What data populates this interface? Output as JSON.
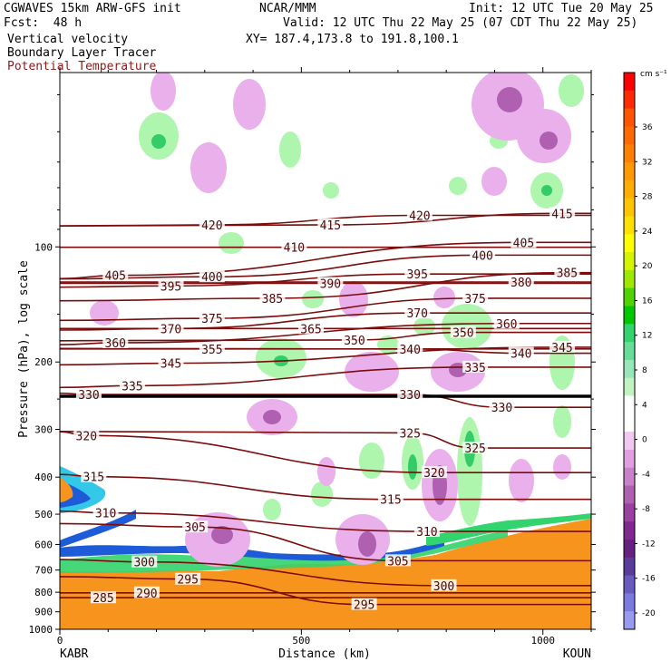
{
  "header": {
    "model": "CGWAVES 15km ARW-GFS init",
    "fcst_label": "Fcst:",
    "fcst_value": "48 h",
    "field1": "Vertical velocity",
    "field2": "Boundary Layer Tracer",
    "field3": "Potential Temperature",
    "org": "NCAR/MMM",
    "init": "Init: 12 UTC Tue 20 May 25",
    "valid": "Valid: 12 UTC Thu 22 May 25 (07 CDT Thu 22 May 25)",
    "xy": "XY= 187.4,173.8 to 191.8,100.1"
  },
  "colors": {
    "theta": "#7a0c0c",
    "tracer_orange": "#f7941d",
    "green": "#9ef59e",
    "pink": "#e9a6ea",
    "purple": "#9a3aa8"
  },
  "chart_data": {
    "type": "cross-section",
    "title": "Vertical velocity / Boundary Layer Tracer / Potential Temperature",
    "xlabel": "Distance (km)",
    "ylabel": "Pressure (hPa), log scale",
    "xlim": [
      0,
      1100
    ],
    "ylim_hpa": [
      1000,
      35
    ],
    "x_ticks": [
      0,
      500,
      1000
    ],
    "y_ticks": [
      100,
      200,
      300,
      400,
      500,
      600,
      700,
      800,
      900,
      1000
    ],
    "endpoints": {
      "left": "KABR",
      "right": "KOUN"
    },
    "colorbar": {
      "units": "cm s⁻¹",
      "labels": [
        "36",
        "32",
        "28",
        "24",
        "20",
        "16",
        "12",
        "8",
        "4",
        "0",
        "-4",
        "-8",
        "-12",
        "-16",
        "-20"
      ],
      "colors": [
        "#ff0000",
        "#ff2a00",
        "#ff5500",
        "#ff6a00",
        "#ff8000",
        "#ff9900",
        "#ffad00",
        "#ffc400",
        "#ffe000",
        "#ffff00",
        "#d4f400",
        "#9fe800",
        "#4fd400",
        "#00c800",
        "#33d36d",
        "#66dd99",
        "#99e6bb",
        "#c2f2c2",
        "#ffffff",
        "#ffffff",
        "#f0c8f0",
        "#e0a0e0",
        "#c882c8",
        "#b060b0",
        "#9a40a0",
        "#802890",
        "#662080",
        "#5a3a9a",
        "#6a5ac0",
        "#7a7ae0",
        "#9a9af0"
      ]
    },
    "theta_labels": [
      {
        "text": "420",
        "x": 315,
        "p": 90
      },
      {
        "text": "420",
        "x": 745,
        "p": 85
      },
      {
        "text": "415",
        "x": 560,
        "p": 90
      },
      {
        "text": "415",
        "x": 1040,
        "p": 84
      },
      {
        "text": "410",
        "x": 485,
        "p": 103
      },
      {
        "text": "405",
        "x": 115,
        "p": 122
      },
      {
        "text": "405",
        "x": 960,
        "p": 100
      },
      {
        "text": "400",
        "x": 315,
        "p": 123
      },
      {
        "text": "400",
        "x": 875,
        "p": 108
      },
      {
        "text": "395",
        "x": 230,
        "p": 130
      },
      {
        "text": "395",
        "x": 740,
        "p": 121
      },
      {
        "text": "390",
        "x": 560,
        "p": 128
      },
      {
        "text": "385",
        "x": 440,
        "p": 140
      },
      {
        "text": "385",
        "x": 1050,
        "p": 120
      },
      {
        "text": "380",
        "x": 955,
        "p": 127
      },
      {
        "text": "375",
        "x": 860,
        "p": 140
      },
      {
        "text": "375",
        "x": 315,
        "p": 158
      },
      {
        "text": "370",
        "x": 740,
        "p": 153
      },
      {
        "text": "370",
        "x": 230,
        "p": 168
      },
      {
        "text": "365",
        "x": 520,
        "p": 168
      },
      {
        "text": "360",
        "x": 115,
        "p": 183
      },
      {
        "text": "360",
        "x": 925,
        "p": 163
      },
      {
        "text": "355",
        "x": 315,
        "p": 190
      },
      {
        "text": "350",
        "x": 610,
        "p": 180
      },
      {
        "text": "350",
        "x": 835,
        "p": 172
      },
      {
        "text": "345",
        "x": 230,
        "p": 207
      },
      {
        "text": "345",
        "x": 1040,
        "p": 188
      },
      {
        "text": "340",
        "x": 725,
        "p": 190
      },
      {
        "text": "340",
        "x": 955,
        "p": 195
      },
      {
        "text": "335",
        "x": 150,
        "p": 237
      },
      {
        "text": "335",
        "x": 860,
        "p": 212
      },
      {
        "text": "330",
        "x": 60,
        "p": 250
      },
      {
        "text": "330",
        "x": 725,
        "p": 250
      },
      {
        "text": "330",
        "x": 915,
        "p": 270
      },
      {
        "text": "325",
        "x": 725,
        "p": 315
      },
      {
        "text": "325",
        "x": 860,
        "p": 345
      },
      {
        "text": "320",
        "x": 55,
        "p": 320
      },
      {
        "text": "320",
        "x": 775,
        "p": 400
      },
      {
        "text": "315",
        "x": 70,
        "p": 410
      },
      {
        "text": "315",
        "x": 685,
        "p": 470
      },
      {
        "text": "310",
        "x": 95,
        "p": 510
      },
      {
        "text": "310",
        "x": 760,
        "p": 570
      },
      {
        "text": "305",
        "x": 280,
        "p": 555
      },
      {
        "text": "305",
        "x": 700,
        "p": 680
      },
      {
        "text": "300",
        "x": 175,
        "p": 685
      },
      {
        "text": "300",
        "x": 795,
        "p": 790
      },
      {
        "text": "295",
        "x": 265,
        "p": 760
      },
      {
        "text": "295",
        "x": 630,
        "p": 885
      },
      {
        "text": "290",
        "x": 180,
        "p": 825
      },
      {
        "text": "285",
        "x": 90,
        "p": 850
      }
    ]
  }
}
